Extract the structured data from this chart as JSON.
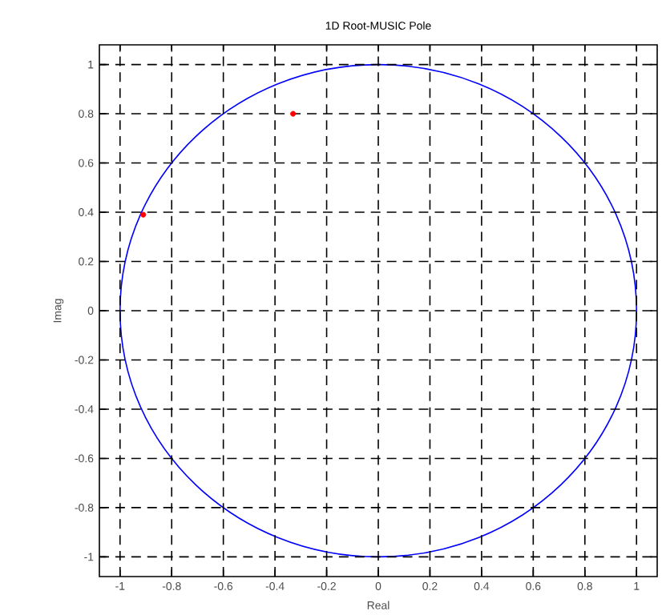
{
  "chart_data": {
    "type": "scatter",
    "title": "1D Root-MUSIC Pole",
    "xlabel": "Real",
    "ylabel": "Imag",
    "xlim": [
      -1.08,
      1.08
    ],
    "ylim": [
      -1.08,
      1.08
    ],
    "xticks": [
      -1,
      -0.8,
      -0.6,
      -0.4,
      -0.2,
      0,
      0.2,
      0.4,
      0.6,
      0.8,
      1
    ],
    "yticks": [
      -1,
      -0.8,
      -0.6,
      -0.4,
      -0.2,
      0,
      0.2,
      0.4,
      0.6,
      0.8,
      1
    ],
    "grid": true,
    "series": [
      {
        "color": "#ff0000",
        "marker": "circle",
        "x": [
          -0.33,
          -0.91
        ],
        "values": [
          0.8,
          0.39
        ]
      }
    ]
  }
}
